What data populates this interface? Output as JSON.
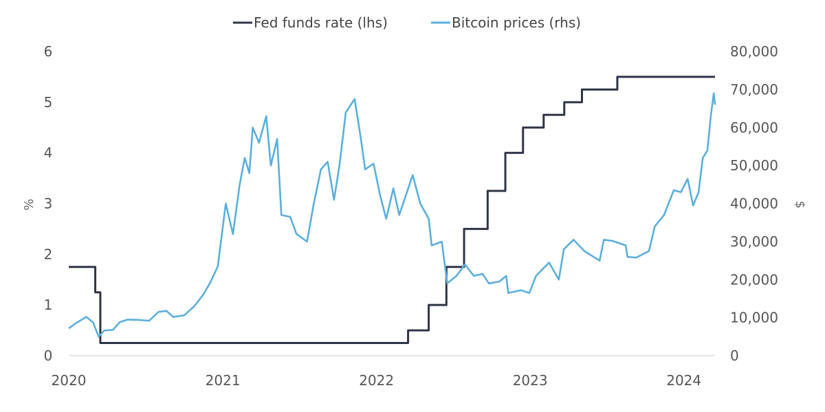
{
  "chart_data": {
    "type": "line",
    "legend": {
      "placement": "top-center"
    },
    "grid": false,
    "x_axis": {
      "type": "date",
      "range": [
        "2020-01-01",
        "2024-03-15"
      ],
      "tick_labels": [
        "2020",
        "2021",
        "2022",
        "2023",
        "2024"
      ]
    },
    "y_left": {
      "label": "%",
      "range": [
        0,
        6
      ],
      "tick_labels": [
        "0",
        "1",
        "2",
        "3",
        "4",
        "5",
        "6"
      ]
    },
    "y_right": {
      "label": "$",
      "range": [
        0,
        80000
      ],
      "tick_labels": [
        "0",
        "10,000",
        "20,000",
        "30,000",
        "40,000",
        "50,000",
        "60,000",
        "70,000",
        "80,000"
      ]
    },
    "series": [
      {
        "name": "Fed funds rate (lhs)",
        "axis": "left",
        "color": "#2f3447",
        "step": true,
        "points": [
          [
            "2020-01-01",
            1.75
          ],
          [
            "2020-03-04",
            1.25
          ],
          [
            "2020-03-16",
            0.25
          ],
          [
            "2022-03-17",
            0.5
          ],
          [
            "2022-05-05",
            1.0
          ],
          [
            "2022-06-16",
            1.75
          ],
          [
            "2022-07-28",
            2.5
          ],
          [
            "2022-09-22",
            3.25
          ],
          [
            "2022-11-03",
            4.0
          ],
          [
            "2022-12-15",
            4.5
          ],
          [
            "2023-02-02",
            4.75
          ],
          [
            "2023-03-23",
            5.0
          ],
          [
            "2023-05-04",
            5.25
          ],
          [
            "2023-07-27",
            5.5
          ],
          [
            "2024-03-15",
            5.5
          ]
        ]
      },
      {
        "name": "Bitcoin prices (rhs)",
        "axis": "right",
        "color": "#5aafdc",
        "step": false,
        "points": [
          [
            "2020-01-01",
            7200
          ],
          [
            "2020-01-20",
            8700
          ],
          [
            "2020-02-12",
            10200
          ],
          [
            "2020-02-28",
            8700
          ],
          [
            "2020-03-12",
            5000
          ],
          [
            "2020-03-25",
            6600
          ],
          [
            "2020-04-15",
            6800
          ],
          [
            "2020-05-01",
            8800
          ],
          [
            "2020-05-20",
            9500
          ],
          [
            "2020-06-15",
            9400
          ],
          [
            "2020-07-10",
            9200
          ],
          [
            "2020-08-01",
            11500
          ],
          [
            "2020-08-20",
            11800
          ],
          [
            "2020-09-05",
            10200
          ],
          [
            "2020-10-01",
            10600
          ],
          [
            "2020-10-25",
            13000
          ],
          [
            "2020-11-15",
            16000
          ],
          [
            "2020-12-01",
            19000
          ],
          [
            "2020-12-20",
            23500
          ],
          [
            "2021-01-08",
            40000
          ],
          [
            "2021-01-25",
            32000
          ],
          [
            "2021-02-10",
            45000
          ],
          [
            "2021-02-22",
            52000
          ],
          [
            "2021-03-05",
            48000
          ],
          [
            "2021-03-13",
            60000
          ],
          [
            "2021-03-28",
            56000
          ],
          [
            "2021-04-14",
            63000
          ],
          [
            "2021-04-25",
            50000
          ],
          [
            "2021-05-10",
            57000
          ],
          [
            "2021-05-20",
            37000
          ],
          [
            "2021-06-10",
            36500
          ],
          [
            "2021-06-25",
            32000
          ],
          [
            "2021-07-20",
            30000
          ],
          [
            "2021-08-05",
            40000
          ],
          [
            "2021-08-22",
            49000
          ],
          [
            "2021-09-07",
            51000
          ],
          [
            "2021-09-22",
            41000
          ],
          [
            "2021-10-05",
            50000
          ],
          [
            "2021-10-20",
            64000
          ],
          [
            "2021-11-10",
            67500
          ],
          [
            "2021-11-25",
            57000
          ],
          [
            "2021-12-05",
            49000
          ],
          [
            "2021-12-25",
            50500
          ],
          [
            "2022-01-10",
            42000
          ],
          [
            "2022-01-24",
            36000
          ],
          [
            "2022-02-10",
            44000
          ],
          [
            "2022-02-24",
            37000
          ],
          [
            "2022-03-28",
            47500
          ],
          [
            "2022-04-15",
            40000
          ],
          [
            "2022-05-05",
            36000
          ],
          [
            "2022-05-12",
            29000
          ],
          [
            "2022-06-05",
            30000
          ],
          [
            "2022-06-18",
            19000
          ],
          [
            "2022-07-10",
            21000
          ],
          [
            "2022-07-30",
            24000
          ],
          [
            "2022-08-20",
            21000
          ],
          [
            "2022-09-10",
            21500
          ],
          [
            "2022-09-25",
            19000
          ],
          [
            "2022-10-20",
            19500
          ],
          [
            "2022-11-05",
            21000
          ],
          [
            "2022-11-10",
            16500
          ],
          [
            "2022-12-10",
            17200
          ],
          [
            "2022-12-30",
            16500
          ],
          [
            "2023-01-15",
            21000
          ],
          [
            "2023-02-15",
            24500
          ],
          [
            "2023-03-10",
            20000
          ],
          [
            "2023-03-22",
            28000
          ],
          [
            "2023-04-14",
            30500
          ],
          [
            "2023-05-10",
            27500
          ],
          [
            "2023-06-15",
            25000
          ],
          [
            "2023-06-25",
            30500
          ],
          [
            "2023-07-15",
            30200
          ],
          [
            "2023-08-16",
            29000
          ],
          [
            "2023-08-20",
            26000
          ],
          [
            "2023-09-10",
            25800
          ],
          [
            "2023-10-10",
            27500
          ],
          [
            "2023-10-24",
            34000
          ],
          [
            "2023-11-15",
            37000
          ],
          [
            "2023-12-08",
            43500
          ],
          [
            "2023-12-25",
            43000
          ],
          [
            "2024-01-10",
            46500
          ],
          [
            "2024-01-23",
            39500
          ],
          [
            "2024-02-05",
            43000
          ],
          [
            "2024-02-15",
            52000
          ],
          [
            "2024-02-26",
            54000
          ],
          [
            "2024-03-05",
            63000
          ],
          [
            "2024-03-12",
            69000
          ],
          [
            "2024-03-15",
            66000
          ]
        ]
      }
    ]
  }
}
